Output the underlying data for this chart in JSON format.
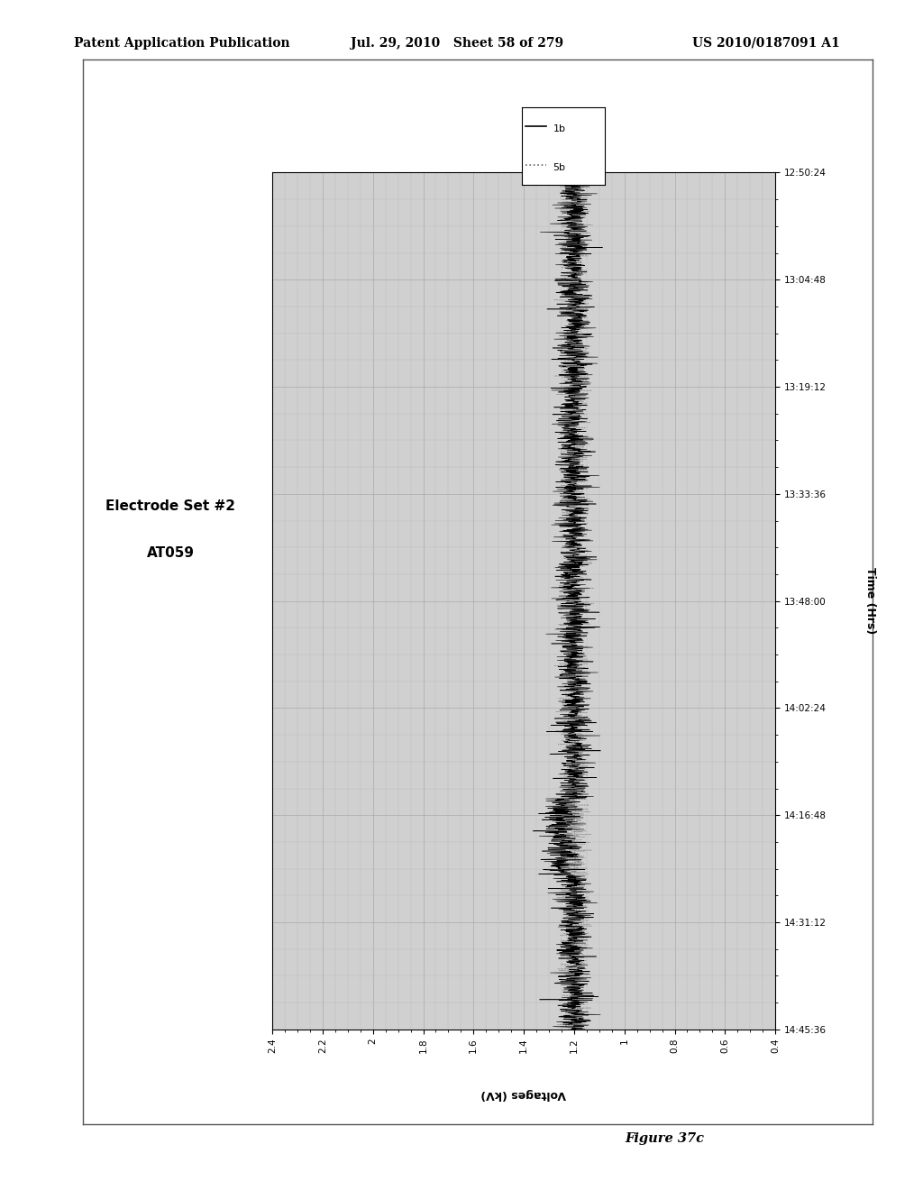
{
  "header_left": "Patent Application Publication",
  "header_mid": "Jul. 29, 2010   Sheet 58 of 279",
  "header_right": "US 2010/0187091 A1",
  "figure_label": "Figure 37c",
  "chart_title_line1": "Electrode Set #2",
  "chart_title_line2": "AT059",
  "time_label": "Time (Hrs)",
  "voltage_label": "Voltages (kV)",
  "ylim_voltage": [
    0.4,
    2.4
  ],
  "voltage_ticks": [
    2.4,
    2.2,
    2.0,
    1.8,
    1.6,
    1.4,
    1.2,
    1.0,
    0.8,
    0.6,
    0.4
  ],
  "voltage_tick_labels": [
    "2.4",
    "2.2",
    "2",
    "1.8",
    "1.6",
    "1.4",
    "1.2",
    "1",
    "0.8",
    "0.6",
    "0.4"
  ],
  "time_tick_labels": [
    "12:50:24",
    "13:04:48",
    "13:19:12",
    "13:33:36",
    "13:48:00",
    "14:02:24",
    "14:16:48",
    "14:31:12",
    "14:45:36"
  ],
  "legend_entries": [
    "1b",
    "5b"
  ],
  "signal_mean": 1.2,
  "signal_noise_1b": 0.035,
  "signal_noise_5b": 0.025,
  "plot_bg_color": "#d0d0d0",
  "grid_color": "#aaaaaa",
  "line_color_1b": "#000000",
  "line_color_5b": "#666666",
  "num_points": 3000,
  "seed": 42
}
